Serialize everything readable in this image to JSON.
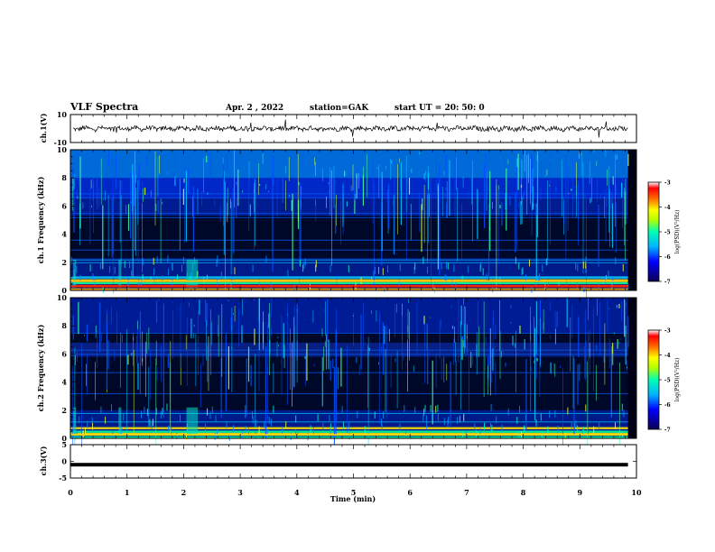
{
  "header": {
    "title": "VLF Spectra",
    "date": "Apr. 2 , 2022",
    "station": "station=GAK",
    "start_ut": "start UT = 20: 50: 0"
  },
  "chart_data": [
    {
      "type": "line",
      "panel": "ch1-waveform",
      "ylabel": "ch.1(V)",
      "yticks": [
        "10",
        "-10"
      ],
      "ylim": [
        -10,
        10
      ],
      "xlim": [
        0,
        10
      ],
      "trace_color": "#000000",
      "note": "noisy waveform near 0 V with small spikes"
    },
    {
      "type": "heatmap",
      "panel": "ch1-spectrogram",
      "ylabel": "ch.1 Frequency (kHz)",
      "yticks": [
        "0",
        "2",
        "4",
        "6",
        "8",
        "10"
      ],
      "ylim": [
        0,
        10
      ],
      "xlim": [
        0,
        10
      ],
      "colorbar": {
        "label": "log(PSD)(V²/Hz)",
        "ticks": [
          "-3",
          "-4",
          "-5",
          "-6",
          "-7"
        ],
        "range": [
          -7,
          -3
        ]
      }
    },
    {
      "type": "heatmap",
      "panel": "ch2-spectrogram",
      "ylabel": "ch.2 Frequency (kHz)",
      "yticks": [
        "0",
        "2",
        "4",
        "6",
        "8",
        "10"
      ],
      "ylim": [
        0,
        10
      ],
      "xlim": [
        0,
        10
      ],
      "colorbar": {
        "label": "log(PSD)(V²/Hz)",
        "ticks": [
          "-3",
          "-4",
          "-5",
          "-6",
          "-7"
        ],
        "range": [
          -7,
          -3
        ]
      }
    },
    {
      "type": "line",
      "panel": "ch3-waveform",
      "ylabel": "ch.3(V)",
      "yticks": [
        "5",
        "0",
        "-5"
      ],
      "ylim": [
        -5,
        5
      ],
      "xlim": [
        0,
        10
      ],
      "constant_value": -1,
      "trace_color": "#000000"
    }
  ],
  "xaxis": {
    "label": "Time (min)",
    "ticks": [
      "0",
      "1",
      "2",
      "3",
      "4",
      "5",
      "6",
      "7",
      "8",
      "9",
      "10"
    ],
    "data_end_min": 9.85
  },
  "colors": {
    "background_dark": "#000016",
    "background_blue": "#001070",
    "colormap": [
      "#0a0050",
      "#0000ff",
      "#00b4ff",
      "#00ffb4",
      "#b4ff00",
      "#ffff00",
      "#ff6400",
      "#ff0000",
      "#ffffff"
    ]
  }
}
